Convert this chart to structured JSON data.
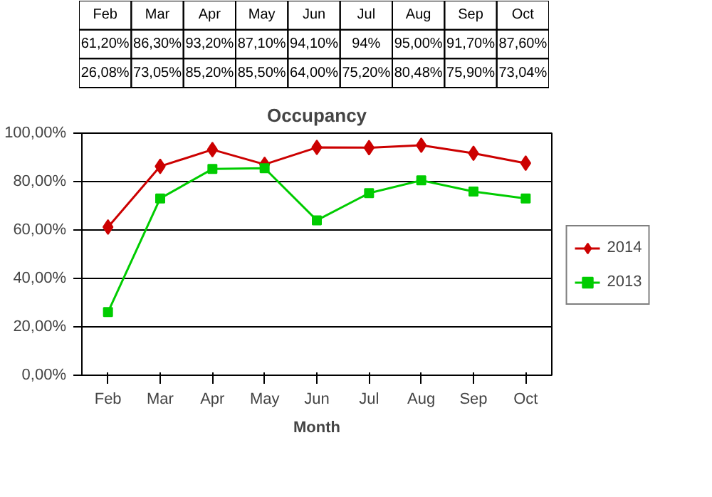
{
  "chart_data": {
    "type": "line",
    "title": "Occupancy",
    "xlabel": "Month",
    "categories": [
      "Feb",
      "Mar",
      "Apr",
      "May",
      "Jun",
      "Jul",
      "Aug",
      "Sep",
      "Oct"
    ],
    "series": [
      {
        "name": "2014",
        "color": "#cc0000",
        "marker": "diamond",
        "values": [
          61.2,
          86.3,
          93.2,
          87.1,
          94.1,
          94,
          95.0,
          91.7,
          87.6
        ],
        "value_labels": [
          "61,20%",
          "86,30%",
          "93,20%",
          "87,10%",
          "94,10%",
          "94%",
          "95,00%",
          "91,70%",
          "87,60%"
        ]
      },
      {
        "name": "2013",
        "color": "#00cc00",
        "marker": "square",
        "values": [
          26.08,
          73.05,
          85.2,
          85.5,
          64.0,
          75.2,
          80.48,
          75.9,
          73.04
        ],
        "value_labels": [
          "26,08%",
          "73,05%",
          "85,20%",
          "85,50%",
          "64,00%",
          "75,20%",
          "80,48%",
          "75,90%",
          "73,04%"
        ]
      }
    ],
    "ylim": [
      0,
      100
    ],
    "yticks": [
      {
        "value": 0,
        "label": "0,00%"
      },
      {
        "value": 20,
        "label": "20,00%"
      },
      {
        "value": 40,
        "label": "40,00%"
      },
      {
        "value": 60,
        "label": "60,00%"
      },
      {
        "value": 80,
        "label": "80,00%"
      },
      {
        "value": 100,
        "label": "100,00%"
      }
    ],
    "grid": "y",
    "legend": "right",
    "line_style": "solid"
  }
}
